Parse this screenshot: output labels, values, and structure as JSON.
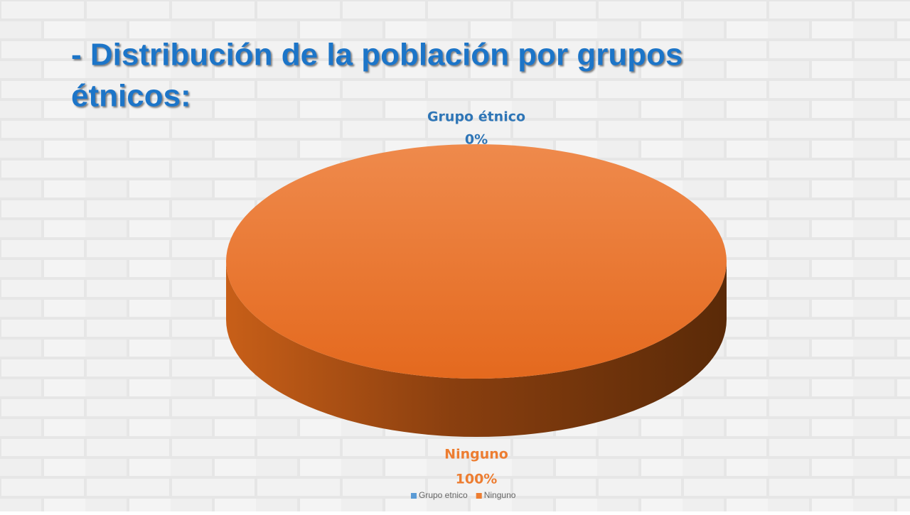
{
  "chart_data": {
    "type": "pie",
    "title_lines": [
      "- Distribución de la población por grupos",
      "étnicos:"
    ],
    "categories": [
      "Grupo etnico",
      "Ninguno"
    ],
    "data_label_names": [
      "Grupo étnico",
      "Ninguno"
    ],
    "values": [
      0,
      100
    ],
    "value_labels": [
      "0%",
      "100%"
    ],
    "colors": [
      "#5b9bd5",
      "#ed7d31"
    ],
    "legend": "bottom",
    "style": "3d"
  }
}
